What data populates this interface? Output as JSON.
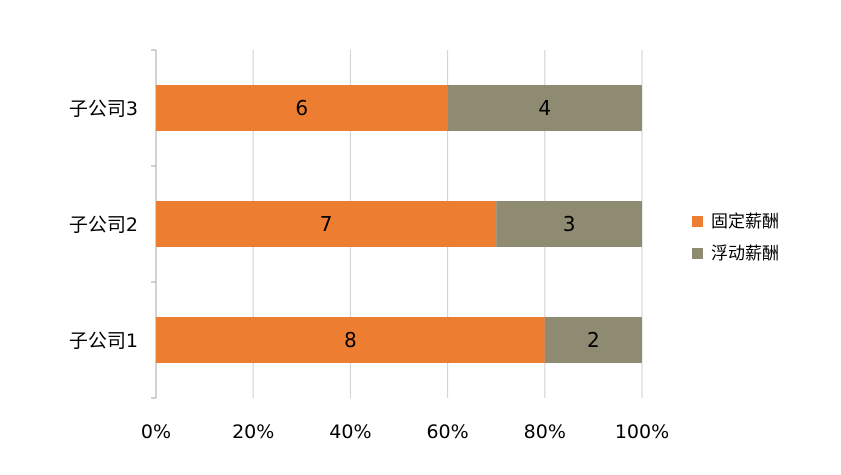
{
  "chart_data": {
    "type": "bar",
    "orientation": "horizontal",
    "stacked": "percent",
    "categories": [
      "子公司1",
      "子公司2",
      "子公司3"
    ],
    "series": [
      {
        "name": "固定薪酬",
        "values": [
          8,
          7,
          6
        ],
        "color": "#ED7D31"
      },
      {
        "name": "浮动薪酬",
        "values": [
          2,
          3,
          4
        ],
        "color": "#8F8B72"
      }
    ],
    "x_ticks": [
      "0%",
      "20%",
      "40%",
      "60%",
      "80%",
      "100%"
    ],
    "xlim": [
      0,
      100
    ],
    "grid": true,
    "legend": "right"
  }
}
